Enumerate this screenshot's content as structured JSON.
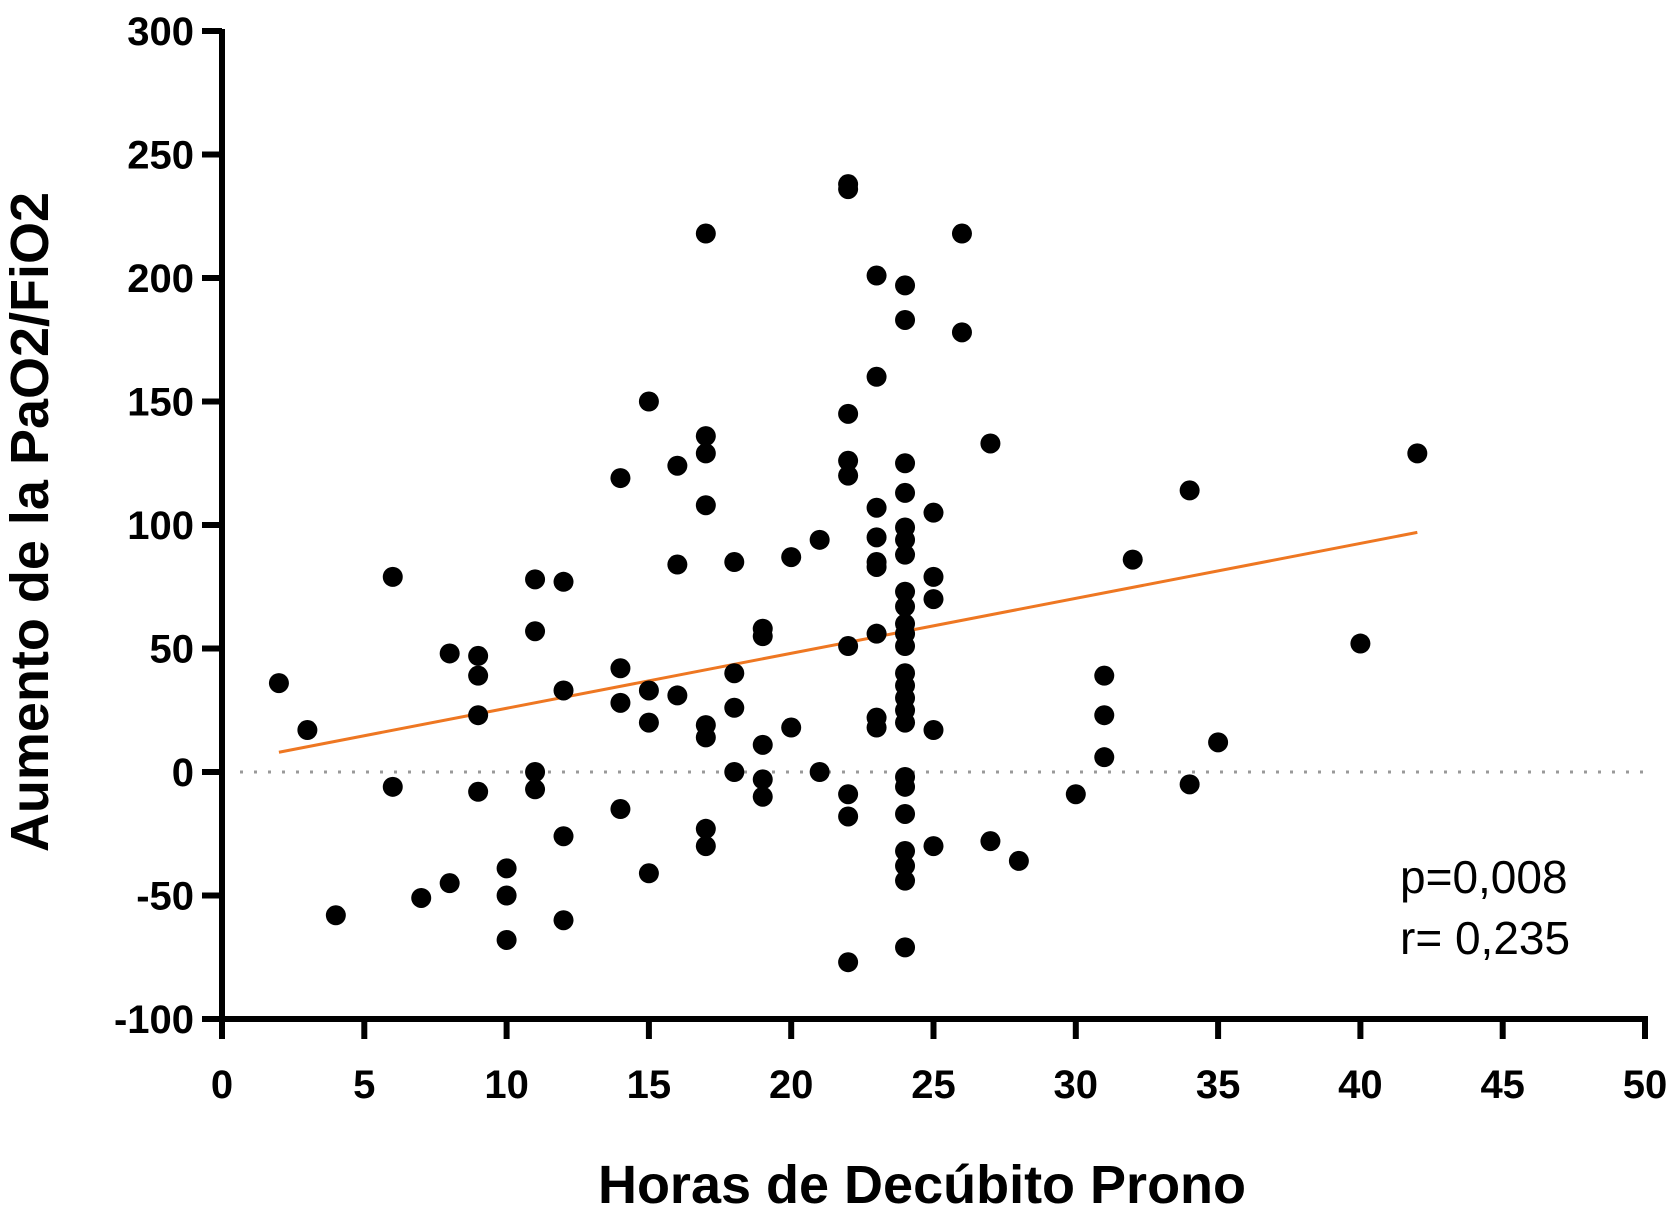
{
  "chart_data": {
    "type": "scatter",
    "xlabel": "Horas de Decúbito Prono",
    "ylabel": "Aumento de la PaO2/FiO2",
    "xlim": [
      0,
      50
    ],
    "ylim": [
      -100,
      300
    ],
    "xticks": [
      0,
      5,
      10,
      15,
      20,
      25,
      30,
      35,
      40,
      45,
      50
    ],
    "yticks": [
      -100,
      -50,
      0,
      50,
      100,
      150,
      200,
      250,
      300
    ],
    "grid": false,
    "reference_line": {
      "y": 0,
      "style": "dotted",
      "color": "#999999"
    },
    "trendline": {
      "x": [
        2,
        42
      ],
      "y": [
        8,
        97
      ],
      "color": "#ee7722"
    },
    "marker_color": "#000000",
    "annotations": [
      "p=0,008",
      "r= 0,235"
    ],
    "points": [
      {
        "x": 2,
        "y": 36
      },
      {
        "x": 3,
        "y": 17
      },
      {
        "x": 4,
        "y": -58
      },
      {
        "x": 6,
        "y": 79
      },
      {
        "x": 6,
        "y": -6
      },
      {
        "x": 7,
        "y": -51
      },
      {
        "x": 8,
        "y": 48
      },
      {
        "x": 8,
        "y": -45
      },
      {
        "x": 9,
        "y": 47
      },
      {
        "x": 9,
        "y": 39
      },
      {
        "x": 9,
        "y": 23
      },
      {
        "x": 9,
        "y": -8
      },
      {
        "x": 10,
        "y": -39
      },
      {
        "x": 10,
        "y": -50
      },
      {
        "x": 10,
        "y": -68
      },
      {
        "x": 11,
        "y": 78
      },
      {
        "x": 11,
        "y": 57
      },
      {
        "x": 11,
        "y": 0
      },
      {
        "x": 11,
        "y": -7
      },
      {
        "x": 12,
        "y": 77
      },
      {
        "x": 12,
        "y": 33
      },
      {
        "x": 12,
        "y": -26
      },
      {
        "x": 12,
        "y": -60
      },
      {
        "x": 14,
        "y": 119
      },
      {
        "x": 14,
        "y": 42
      },
      {
        "x": 14,
        "y": 28
      },
      {
        "x": 14,
        "y": -15
      },
      {
        "x": 15,
        "y": 150
      },
      {
        "x": 15,
        "y": 33
      },
      {
        "x": 15,
        "y": 20
      },
      {
        "x": 15,
        "y": -41
      },
      {
        "x": 16,
        "y": 124
      },
      {
        "x": 16,
        "y": 84
      },
      {
        "x": 16,
        "y": 31
      },
      {
        "x": 17,
        "y": 218
      },
      {
        "x": 17,
        "y": 136
      },
      {
        "x": 17,
        "y": 129
      },
      {
        "x": 17,
        "y": 108
      },
      {
        "x": 17,
        "y": 19
      },
      {
        "x": 17,
        "y": 14
      },
      {
        "x": 17,
        "y": -23
      },
      {
        "x": 17,
        "y": -30
      },
      {
        "x": 18,
        "y": 85
      },
      {
        "x": 18,
        "y": 40
      },
      {
        "x": 18,
        "y": 26
      },
      {
        "x": 18,
        "y": 0
      },
      {
        "x": 19,
        "y": 58
      },
      {
        "x": 19,
        "y": 55
      },
      {
        "x": 19,
        "y": 11
      },
      {
        "x": 19,
        "y": -3
      },
      {
        "x": 19,
        "y": -10
      },
      {
        "x": 20,
        "y": 87
      },
      {
        "x": 20,
        "y": 18
      },
      {
        "x": 21,
        "y": 94
      },
      {
        "x": 21,
        "y": 0
      },
      {
        "x": 22,
        "y": 238
      },
      {
        "x": 22,
        "y": 236
      },
      {
        "x": 22,
        "y": 145
      },
      {
        "x": 22,
        "y": 126
      },
      {
        "x": 22,
        "y": 120
      },
      {
        "x": 22,
        "y": 51
      },
      {
        "x": 22,
        "y": -9
      },
      {
        "x": 22,
        "y": -18
      },
      {
        "x": 22,
        "y": -77
      },
      {
        "x": 23,
        "y": 201
      },
      {
        "x": 23,
        "y": 160
      },
      {
        "x": 23,
        "y": 107
      },
      {
        "x": 23,
        "y": 95
      },
      {
        "x": 23,
        "y": 85
      },
      {
        "x": 23,
        "y": 83
      },
      {
        "x": 23,
        "y": 56
      },
      {
        "x": 23,
        "y": 22
      },
      {
        "x": 23,
        "y": 18
      },
      {
        "x": 24,
        "y": 197
      },
      {
        "x": 24,
        "y": 183
      },
      {
        "x": 24,
        "y": 125
      },
      {
        "x": 24,
        "y": 113
      },
      {
        "x": 24,
        "y": 99
      },
      {
        "x": 24,
        "y": 94
      },
      {
        "x": 24,
        "y": 88
      },
      {
        "x": 24,
        "y": 73
      },
      {
        "x": 24,
        "y": 67
      },
      {
        "x": 24,
        "y": 60
      },
      {
        "x": 24,
        "y": 56
      },
      {
        "x": 24,
        "y": 51
      },
      {
        "x": 24,
        "y": 40
      },
      {
        "x": 24,
        "y": 35
      },
      {
        "x": 24,
        "y": 30
      },
      {
        "x": 24,
        "y": 25
      },
      {
        "x": 24,
        "y": 20
      },
      {
        "x": 24,
        "y": -2
      },
      {
        "x": 24,
        "y": -6
      },
      {
        "x": 24,
        "y": -17
      },
      {
        "x": 24,
        "y": -32
      },
      {
        "x": 24,
        "y": -38
      },
      {
        "x": 24,
        "y": -44
      },
      {
        "x": 24,
        "y": -71
      },
      {
        "x": 25,
        "y": 105
      },
      {
        "x": 25,
        "y": 79
      },
      {
        "x": 25,
        "y": 70
      },
      {
        "x": 25,
        "y": 17
      },
      {
        "x": 25,
        "y": -30
      },
      {
        "x": 26,
        "y": 218
      },
      {
        "x": 26,
        "y": 178
      },
      {
        "x": 27,
        "y": 133
      },
      {
        "x": 27,
        "y": -28
      },
      {
        "x": 28,
        "y": -36
      },
      {
        "x": 30,
        "y": -9
      },
      {
        "x": 31,
        "y": 39
      },
      {
        "x": 31,
        "y": 23
      },
      {
        "x": 31,
        "y": 6
      },
      {
        "x": 32,
        "y": 86
      },
      {
        "x": 34,
        "y": 114
      },
      {
        "x": 34,
        "y": -5
      },
      {
        "x": 35,
        "y": 12
      },
      {
        "x": 40,
        "y": 52
      },
      {
        "x": 42,
        "y": 129
      }
    ]
  }
}
